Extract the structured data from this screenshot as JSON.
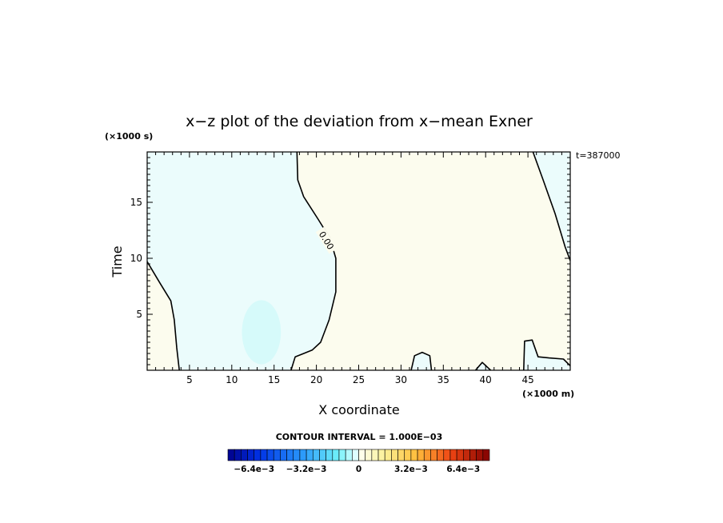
{
  "chart_data": {
    "type": "contour",
    "title": "x−z plot of the deviation from x−mean Exner",
    "xlabel": "X coordinate",
    "ylabel": "Time",
    "x_unit": "(×1000 m)",
    "y_unit": "(×1000 s)",
    "time_label": "t=387000",
    "xlim": [
      0,
      50
    ],
    "ylim": [
      0,
      19.5
    ],
    "x_ticks": [
      5,
      10,
      15,
      20,
      25,
      30,
      35,
      40,
      45
    ],
    "y_ticks": [
      5,
      10,
      15
    ],
    "contour_label": "0.00",
    "contour_interval_text": "CONTOUR INTERVAL = 1.000E−03",
    "colorbar": {
      "min": -0.008,
      "max": 0.008,
      "step": 0.0004,
      "tick_values": [
        -0.0064,
        -0.0032,
        0,
        0.0032,
        0.0064
      ],
      "tick_labels": [
        "−6.4e−3",
        "−3.2e−3",
        "0",
        "3.2e−3",
        "6.4e−3"
      ]
    },
    "colors": {
      "negative_fill": "#ebfcfc",
      "negative_patch": "#d6fafa",
      "positive_fill": "#fcfcee",
      "contour_line": "#000000"
    },
    "zero_contours": [
      [
        [
          0,
          9.7
        ],
        [
          1.5,
          7.8
        ],
        [
          2.8,
          6.2
        ],
        [
          3.2,
          4.5
        ],
        [
          3.5,
          2.0
        ],
        [
          3.8,
          0
        ]
      ],
      [
        [
          17.7,
          19.5
        ],
        [
          17.8,
          17.0
        ],
        [
          18.5,
          15.5
        ],
        [
          20.2,
          13.5
        ],
        [
          21.6,
          11.8
        ],
        [
          22.3,
          10.0
        ],
        [
          22.3,
          7.0
        ],
        [
          21.5,
          4.5
        ],
        [
          20.5,
          2.5
        ],
        [
          19.5,
          1.8
        ],
        [
          17.5,
          1.2
        ],
        [
          17.0,
          0
        ]
      ],
      [
        [
          31.2,
          0
        ],
        [
          31.6,
          1.3
        ],
        [
          32.5,
          1.6
        ],
        [
          33.4,
          1.3
        ],
        [
          33.6,
          0
        ]
      ],
      [
        [
          38.8,
          0
        ],
        [
          39.6,
          0.7
        ],
        [
          40.6,
          0
        ]
      ],
      [
        [
          44.5,
          0
        ],
        [
          44.6,
          2.6
        ],
        [
          45.5,
          2.7
        ],
        [
          46.2,
          1.2
        ],
        [
          47.5,
          1.1
        ],
        [
          49.2,
          1.0
        ],
        [
          50,
          0.4
        ]
      ],
      [
        [
          45.6,
          19.5
        ],
        [
          46.8,
          17.0
        ],
        [
          48.2,
          14.0
        ],
        [
          49.4,
          11.0
        ],
        [
          50,
          9.8
        ]
      ]
    ]
  }
}
